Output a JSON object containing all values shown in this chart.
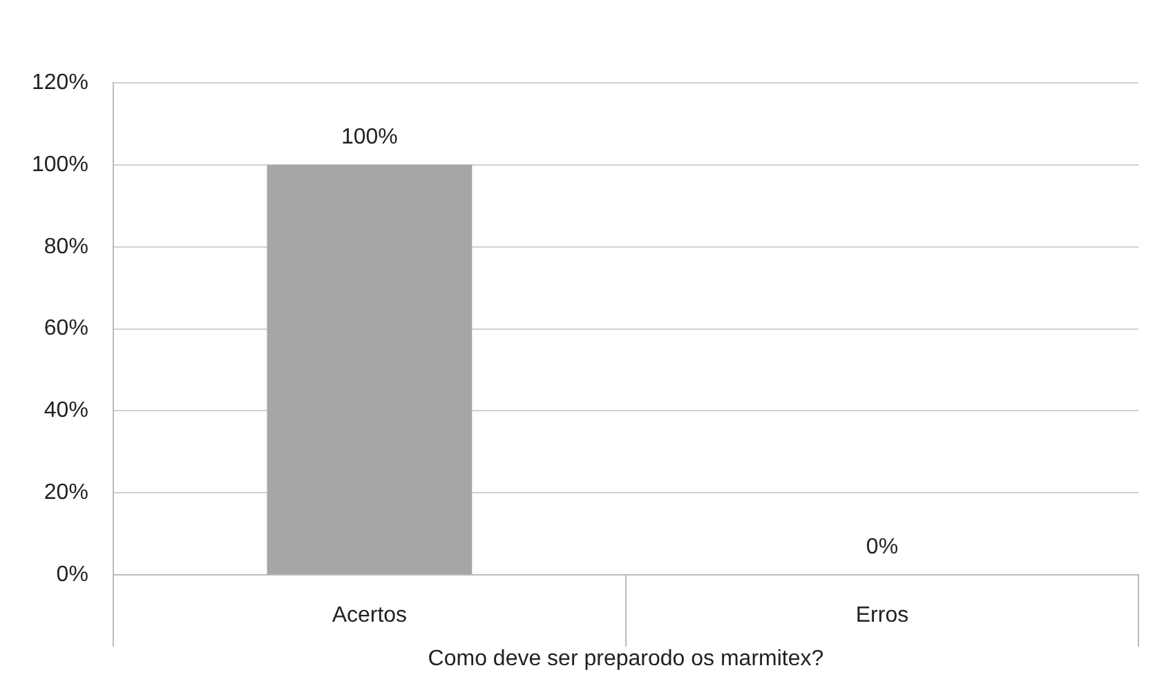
{
  "chart_data": {
    "type": "bar",
    "xlabel": "Como deve ser preparodo os marmitex?",
    "categories": [
      "Acertos",
      "Erros"
    ],
    "values": [
      100,
      0
    ],
    "color": "#a6a6a6",
    "ylim": [
      0,
      120
    ],
    "yticks": [
      {
        "value": 0,
        "label": "0%"
      },
      {
        "value": 20,
        "label": "20%"
      },
      {
        "value": 40,
        "label": "40%"
      },
      {
        "value": 60,
        "label": "60%"
      },
      {
        "value": 80,
        "label": "80%"
      },
      {
        "value": 100,
        "label": "100%"
      },
      {
        "value": 120,
        "label": "120%"
      }
    ],
    "value_labels": [
      "100%",
      "0%"
    ],
    "grid": "y",
    "legend": false
  }
}
